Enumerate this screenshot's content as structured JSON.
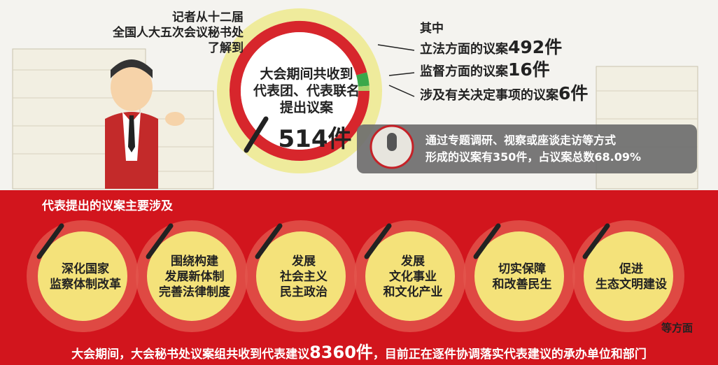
{
  "intro": [
    "记者从十二届",
    "全国人大五次会议秘书处",
    "了解到"
  ],
  "total": {
    "lines": [
      "大会期间共收到",
      "代表团、代表联名",
      "提出议案"
    ],
    "value": 514,
    "unit": "件"
  },
  "breakdown": {
    "heading": "其中",
    "items": [
      {
        "label": "立法方面的议案",
        "value": 492,
        "unit": "件",
        "color": "#d7262c"
      },
      {
        "label": "监督方面的议案",
        "value": 16,
        "unit": "件",
        "color": "#3aa84a"
      },
      {
        "label": "涉及有关决定事项的议案",
        "value": 6,
        "unit": "件",
        "color": "#a9d26b"
      }
    ]
  },
  "note": [
    "通过专题调研、视察或座谈走访等方式",
    "形成的议案有350件，占议案总数68.09%"
  ],
  "topics_heading": "代表提出的议案主要涉及",
  "topics": [
    [
      "深化国家",
      "监察体制改革"
    ],
    [
      "围绕构建",
      "发展新体制",
      "完善法律制度"
    ],
    [
      "发展",
      "社会主义",
      "民主政治"
    ],
    [
      "发展",
      "文化事业",
      "和文化产业"
    ],
    [
      "切实保障",
      "和改善民生"
    ],
    [
      "促进",
      "生态文明建设"
    ]
  ],
  "topics_tail": "等方面",
  "footer": {
    "prefix": "大会期间，大会秘书处议案组共收到代表建议",
    "value": 8360,
    "unit": "件",
    "suffix": "，目前正在逐件协调落实代表建议的承办单位和部门"
  }
}
